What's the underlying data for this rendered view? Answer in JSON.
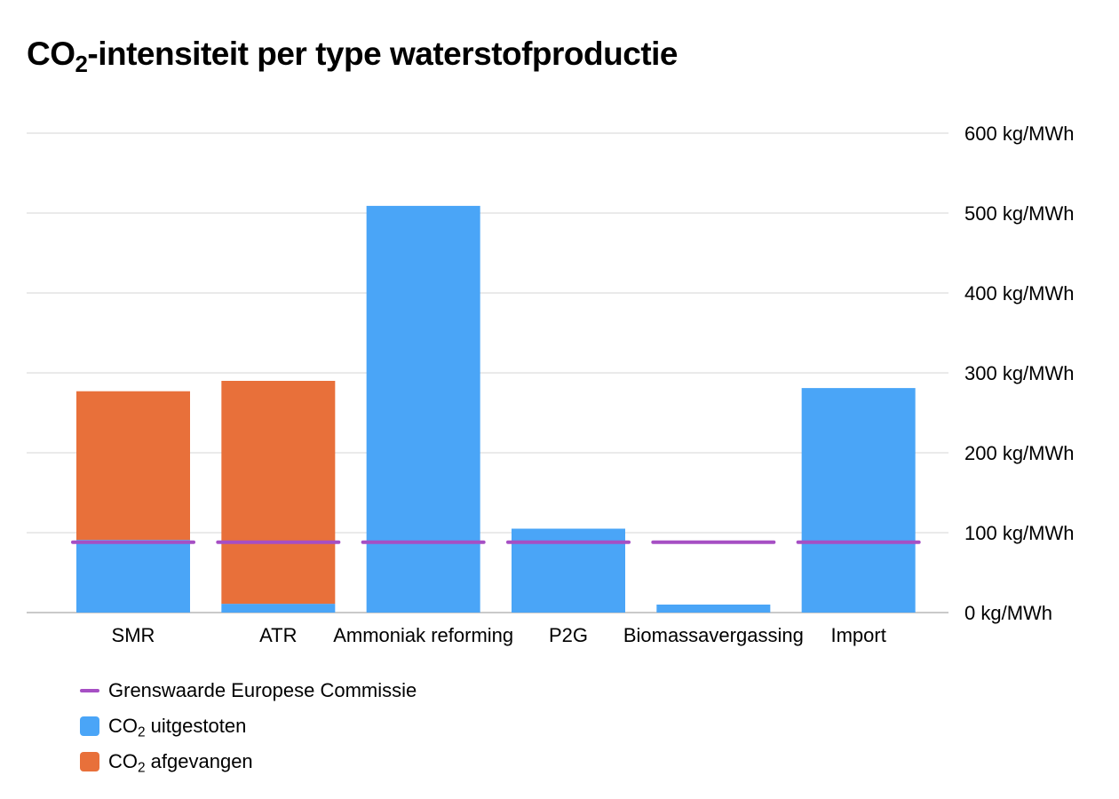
{
  "title": {
    "prefix": "CO",
    "sub": "2",
    "rest": "-intensiteit per type waterstofproductie"
  },
  "chart_data": {
    "type": "bar",
    "stacked": true,
    "categories": [
      "SMR",
      "ATR",
      "Ammoniak reforming",
      "P2G",
      "Biomassavergassing",
      "Import"
    ],
    "series": [
      {
        "name": "CO₂ uitgestoten",
        "color": "#4aa5f7",
        "values": [
          91,
          11,
          509,
          105,
          10,
          281
        ]
      },
      {
        "name": "CO₂ afgevangen",
        "color": "#e8703a",
        "values": [
          186,
          279,
          0,
          0,
          0,
          0
        ]
      }
    ],
    "reference_line": {
      "name": "Grenswaarde Europese Commissie",
      "color": "#a64fc4",
      "value": 88
    },
    "y_ticks": [
      "0 kg/MWh",
      "100 kg/MWh",
      "200 kg/MWh",
      "300 kg/MWh",
      "400 kg/MWh",
      "500 kg/MWh",
      "600 kg/MWh"
    ],
    "ylim": [
      0,
      600
    ],
    "y_axis_side": "right",
    "grid": true,
    "legend_position": "bottom-left"
  },
  "legend": [
    {
      "kind": "line",
      "color": "#a64fc4",
      "prefix": "Grenswaarde Europese Commissie",
      "sub": "",
      "rest": ""
    },
    {
      "kind": "box",
      "color": "#4aa5f7",
      "prefix": "CO",
      "sub": "2",
      "rest": " uitgestoten"
    },
    {
      "kind": "box",
      "color": "#e8703a",
      "prefix": "CO",
      "sub": "2",
      "rest": " afgevangen"
    }
  ]
}
